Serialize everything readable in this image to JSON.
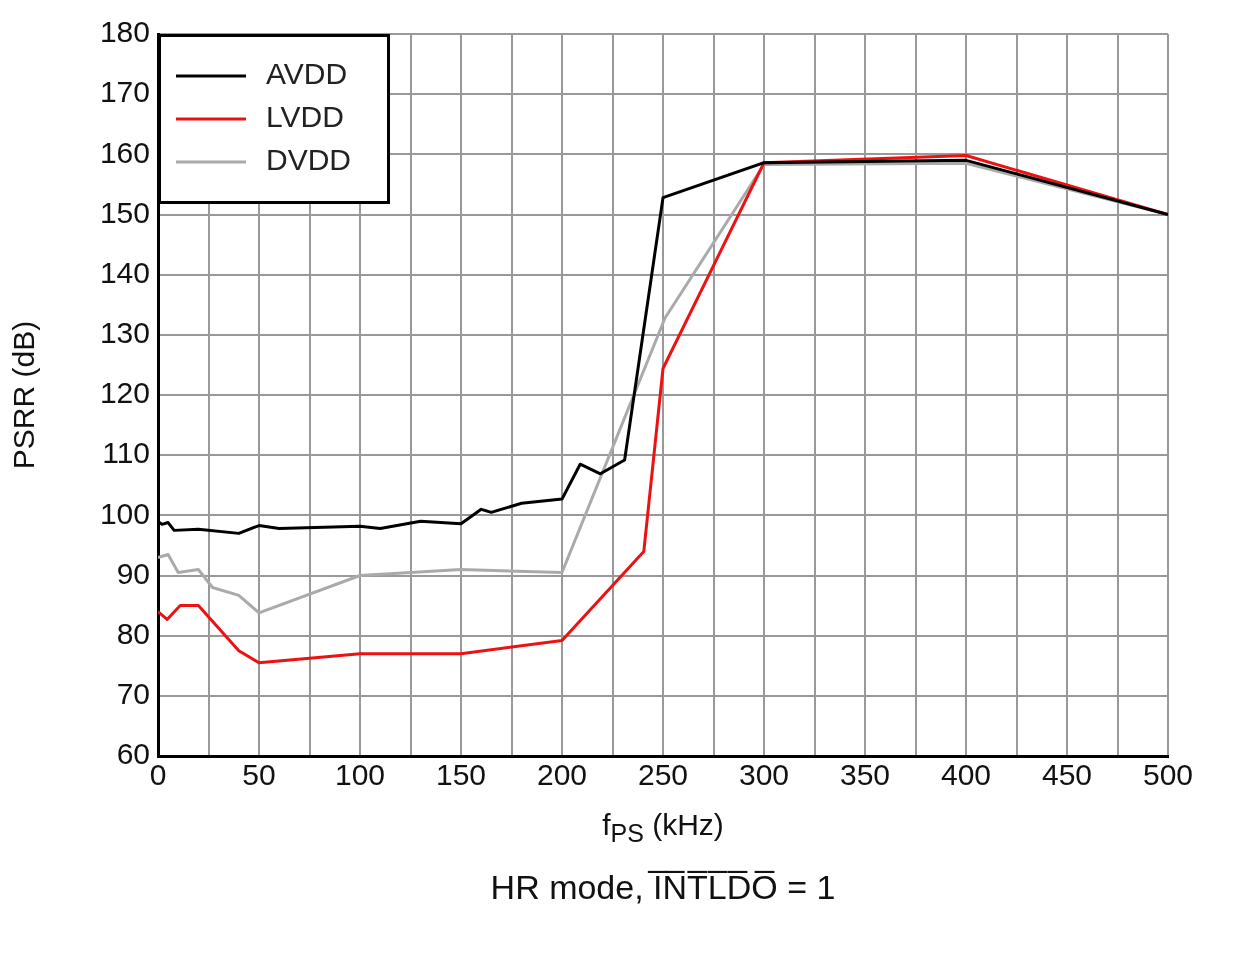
{
  "chart_data": {
    "type": "line",
    "xlabel": "f$_{PS}$ (kHz)",
    "ylabel": "PSRR (dB)",
    "annotations": [
      "HR mode, I̅N̅T̅L̅D̅O̅ = 1"
    ],
    "xlim": [
      0,
      500
    ],
    "xticks": [
      0,
      50,
      100,
      150,
      200,
      250,
      300,
      350,
      400,
      450,
      500
    ],
    "ylim": [
      60,
      180
    ],
    "yticks": [
      60,
      70,
      80,
      90,
      100,
      110,
      120,
      130,
      140,
      150,
      160,
      170,
      180
    ],
    "grid": true,
    "legend": "top left",
    "marker": "none",
    "line_style": "solid",
    "series": [
      {
        "name": "AVDD",
        "color": "#000000",
        "x": [
          0,
          2,
          5,
          8,
          20,
          40,
          50,
          60,
          100,
          110,
          130,
          150,
          160,
          165,
          180,
          200,
          209,
          219,
          231,
          250,
          300,
          400,
          500
        ],
        "values": [
          99,
          98.5,
          98.8,
          97.5,
          97.7,
          97,
          98.3,
          97.8,
          98.2,
          97.8,
          99,
          98.6,
          101,
          100.5,
          102,
          102.7,
          108.5,
          106.9,
          109.2,
          152.8,
          158.6,
          159,
          150
        ]
      },
      {
        "name": "LVDD",
        "color": "#ee1111",
        "x": [
          0,
          4.5,
          11,
          20,
          40,
          50,
          100,
          150,
          200,
          240.5,
          250,
          300,
          400,
          500
        ],
        "values": [
          84,
          82.7,
          85,
          85,
          77.5,
          75.5,
          77,
          77,
          79.2,
          94,
          124.4,
          158.6,
          159.8,
          150
        ]
      },
      {
        "name": "DVDD",
        "color": "#aaaaaa",
        "x": [
          0,
          5,
          10,
          20,
          27,
          40,
          50,
          100,
          150,
          200,
          251,
          300,
          400,
          500
        ],
        "values": [
          93,
          93.5,
          90.5,
          91,
          88,
          86.7,
          83.8,
          90,
          91,
          90.5,
          132.8,
          158.3,
          158.5,
          150
        ]
      }
    ]
  }
}
